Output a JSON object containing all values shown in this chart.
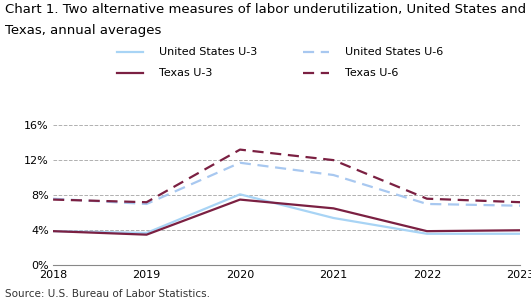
{
  "title_line1": "Chart 1. Two alternative measures of labor underutilization, United States and",
  "title_line2": "Texas, annual averages",
  "title_fontsize": 9.5,
  "source": "Source: U.S. Bureau of Labor Statistics.",
  "years": [
    2018,
    2019,
    2020,
    2021,
    2022,
    2023
  ],
  "us_u3": [
    3.9,
    3.7,
    8.1,
    5.4,
    3.6,
    3.6
  ],
  "us_u6": [
    7.6,
    7.0,
    11.7,
    10.3,
    7.0,
    6.8
  ],
  "tx_u3": [
    3.9,
    3.5,
    7.5,
    6.5,
    3.9,
    4.0
  ],
  "tx_u6": [
    7.5,
    7.2,
    13.2,
    12.0,
    7.6,
    7.2
  ],
  "us_u3_color": "#a8d4f5",
  "us_u6_color": "#a8c8f0",
  "tx_u3_color": "#7b2042",
  "tx_u6_color": "#7b2042",
  "ylim": [
    0,
    16
  ],
  "yticks": [
    0,
    4,
    8,
    12,
    16
  ],
  "ytick_labels": [
    "0%",
    "4%",
    "8%",
    "12%",
    "16%"
  ],
  "background_color": "#ffffff",
  "grid_color": "#b0b0b0",
  "linewidth": 1.6
}
